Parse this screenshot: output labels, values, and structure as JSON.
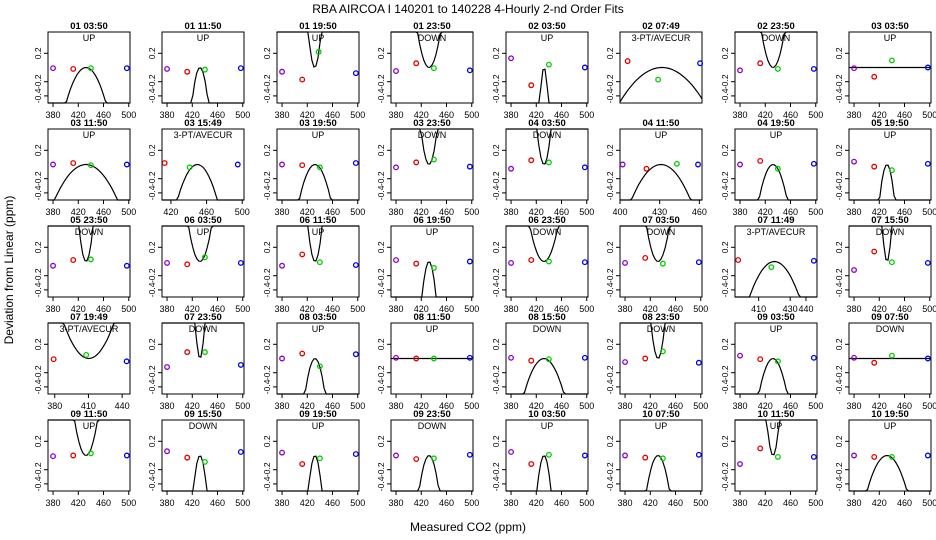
{
  "title": "RBA   AIRCOA I   140201 to 140228   4-Hourly 2-nd Order Fits",
  "xlabel": "Measured CO2 (ppm)",
  "ylabel": "Deviation from Linear (ppm)",
  "colors": {
    "fit": "#000000",
    "p1": "#8b00c8",
    "p2": "#e00000",
    "p3": "#00cc00",
    "p4": "#0000ee"
  },
  "chart_data": {
    "type": "scatter",
    "ylim": [
      -0.5,
      0.5
    ],
    "yticks": [
      "0.2",
      "-0.2",
      "-0.4"
    ],
    "ytick_values": [
      0.2,
      -0.2,
      -0.4
    ],
    "panels": [
      {
        "label": "01 03:50",
        "status": "UP",
        "xlim": [
          372,
          502
        ],
        "xticks": [
          380,
          420,
          460,
          500
        ],
        "x": [
          380,
          412,
          440,
          497
        ],
        "y": [
          -0.01,
          -0.02,
          -0.01,
          -0.01
        ],
        "fit": [
          -0.0005,
          0.0,
          0.0
        ]
      },
      {
        "label": "01 11:50",
        "status": "UP",
        "xlim": [
          372,
          502
        ],
        "xticks": [
          380,
          420,
          460,
          500
        ],
        "x": [
          380,
          412,
          440,
          497
        ],
        "y": [
          -0.02,
          -0.06,
          -0.03,
          -0.01
        ],
        "fit": [
          -0.003,
          0.0,
          0.0
        ]
      },
      {
        "label": "01 19:50",
        "status": "UP",
        "xlim": [
          372,
          502
        ],
        "xticks": [
          380,
          420,
          460,
          500
        ],
        "x": [
          380,
          412,
          438,
          497
        ],
        "y": [
          -0.06,
          -0.17,
          0.22,
          -0.08
        ],
        "fit": [
          0.005,
          0.0,
          0.0
        ]
      },
      {
        "label": "01 23:50",
        "status": "DOWN",
        "xlim": [
          372,
          502
        ],
        "xticks": [
          380,
          420,
          460,
          500
        ],
        "x": [
          380,
          412,
          440,
          497
        ],
        "y": [
          -0.05,
          0.06,
          -0.01,
          -0.04
        ],
        "fit": [
          0.0015,
          0.0,
          0.0
        ]
      },
      {
        "label": "02 03:50",
        "status": "UP",
        "xlim": [
          372,
          502
        ],
        "xticks": [
          380,
          420,
          460,
          500
        ],
        "x": [
          380,
          412,
          440,
          497
        ],
        "y": [
          0.13,
          -0.25,
          0.04,
          0.0
        ],
        "fit": [
          -0.011,
          0.0,
          0.0
        ]
      },
      {
        "label": "02 07:49",
        "status": "3-PT/AVECUR",
        "xlim": [
          405,
          448
        ],
        "xticks": [],
        "x": [
          409,
          425,
          447
        ],
        "y": [
          0.09,
          -0.17,
          0.06
        ],
        "fit": [
          -0.001,
          0.0,
          0.0
        ]
      },
      {
        "label": "02 23:50",
        "status": "DOWN",
        "xlim": [
          372,
          502
        ],
        "xticks": [
          380,
          420,
          460,
          500
        ],
        "x": [
          380,
          412,
          440,
          497
        ],
        "y": [
          -0.04,
          0.06,
          -0.02,
          -0.02
        ],
        "fit": [
          0.0015,
          0.0,
          0.0
        ]
      },
      {
        "label": "03 03:50",
        "status": "UP",
        "xlim": [
          372,
          502
        ],
        "xticks": [
          380,
          420,
          460,
          500
        ],
        "x": [
          380,
          412,
          440,
          497
        ],
        "y": [
          -0.01,
          -0.13,
          0.1,
          0.0
        ],
        "fit": [
          0.0,
          0.0,
          0.0
        ]
      },
      {
        "label": "03 11:50",
        "status": "UP",
        "xlim": [
          372,
          502
        ],
        "xticks": [
          380,
          420,
          460,
          500
        ],
        "x": [
          380,
          412,
          440,
          497
        ],
        "y": [
          0.0,
          0.02,
          -0.01,
          0.0
        ],
        "fit": [
          -0.0002,
          0.0,
          0.0
        ]
      },
      {
        "label": "03 15:49",
        "status": "3-PT/AVECUR",
        "xlim": [
          410,
          502
        ],
        "xticks": [
          420,
          460,
          500
        ],
        "x": [
          413,
          441,
          495
        ],
        "y": [
          0.02,
          -0.04,
          0.0
        ],
        "fit": [
          -0.001,
          0.0,
          0.0
        ]
      },
      {
        "label": "03 19:50",
        "status": "UP",
        "xlim": [
          372,
          502
        ],
        "xticks": [
          380,
          420,
          460,
          500
        ],
        "x": [
          380,
          412,
          440,
          497
        ],
        "y": [
          0.0,
          -0.01,
          -0.04,
          0.02
        ],
        "fit": [
          -0.0008,
          0.0,
          0.0
        ]
      },
      {
        "label": "03 23:50",
        "status": "DOWN",
        "xlim": [
          372,
          502
        ],
        "xticks": [
          380,
          420,
          460,
          500
        ],
        "x": [
          380,
          412,
          440,
          497
        ],
        "y": [
          -0.04,
          0.03,
          0.07,
          -0.03
        ],
        "fit": [
          0.003,
          0.0,
          0.0
        ]
      },
      {
        "label": "04 03:50",
        "status": "DOWN",
        "xlim": [
          372,
          502
        ],
        "xticks": [
          380,
          420,
          460,
          500
        ],
        "x": [
          380,
          412,
          440,
          497
        ],
        "y": [
          -0.06,
          0.06,
          0.03,
          -0.04
        ],
        "fit": [
          0.004,
          0.0,
          0.0
        ]
      },
      {
        "label": "04 11:50",
        "status": "UP",
        "xlim": [
          400,
          462
        ],
        "xticks": [
          400,
          430,
          460
        ],
        "x": [
          402,
          420,
          443,
          459
        ],
        "y": [
          0.0,
          -0.06,
          0.01,
          0.0
        ],
        "fit": [
          -0.001,
          0.0,
          0.0
        ]
      },
      {
        "label": "04 19:50",
        "status": "UP",
        "xlim": [
          372,
          502
        ],
        "xticks": [
          380,
          420,
          460,
          500
        ],
        "x": [
          380,
          412,
          440,
          497
        ],
        "y": [
          0.0,
          0.05,
          -0.06,
          0.01
        ],
        "fit": [
          -0.001,
          0.0,
          0.0
        ]
      },
      {
        "label": "05 19:50",
        "status": "UP",
        "xlim": [
          372,
          502
        ],
        "xticks": [
          380,
          420,
          460,
          500
        ],
        "x": [
          380,
          412,
          440,
          497
        ],
        "y": [
          0.04,
          -0.03,
          -0.08,
          0.01
        ],
        "fit": [
          -0.0035,
          0.0,
          0.0
        ]
      },
      {
        "label": "05 23:50",
        "status": "DOWN",
        "xlim": [
          372,
          502
        ],
        "xticks": [
          380,
          420,
          460,
          500
        ],
        "x": [
          380,
          412,
          440,
          497
        ],
        "y": [
          -0.06,
          0.02,
          0.03,
          -0.06
        ],
        "fit": [
          0.004,
          0.0,
          0.0
        ]
      },
      {
        "label": "06 03:50",
        "status": "UP",
        "xlim": [
          372,
          502
        ],
        "xticks": [
          380,
          420,
          460,
          500
        ],
        "x": [
          380,
          412,
          440,
          497
        ],
        "y": [
          -0.02,
          -0.04,
          0.06,
          -0.02
        ],
        "fit": [
          0.0015,
          0.0,
          0.0
        ]
      },
      {
        "label": "06 11:50",
        "status": "UP",
        "xlim": [
          372,
          502
        ],
        "xticks": [
          380,
          420,
          460,
          500
        ],
        "x": [
          380,
          412,
          440,
          497
        ],
        "y": [
          -0.06,
          0.1,
          -0.01,
          -0.05
        ],
        "fit": [
          0.004,
          0.0,
          0.0
        ]
      },
      {
        "label": "06 19:50",
        "status": "UP",
        "xlim": [
          372,
          502
        ],
        "xticks": [
          380,
          420,
          460,
          500
        ],
        "x": [
          380,
          412,
          440,
          497
        ],
        "y": [
          0.02,
          -0.03,
          -0.09,
          0.0
        ],
        "fit": [
          -0.004,
          0.0,
          0.0
        ]
      },
      {
        "label": "06 23:50",
        "status": "DOWN",
        "xlim": [
          372,
          502
        ],
        "xticks": [
          380,
          420,
          460,
          500
        ],
        "x": [
          380,
          412,
          440,
          497
        ],
        "y": [
          -0.02,
          0.02,
          0.0,
          -0.01
        ],
        "fit": [
          0.001,
          0.0,
          0.0
        ]
      },
      {
        "label": "07 03:50",
        "status": "DOWN",
        "xlim": [
          372,
          502
        ],
        "xticks": [
          380,
          420,
          460,
          500
        ],
        "x": [
          380,
          412,
          440,
          497
        ],
        "y": [
          -0.02,
          0.05,
          -0.03,
          -0.01
        ],
        "fit": [
          0.0015,
          0.0,
          0.0
        ]
      },
      {
        "label": "07 11:49",
        "status": "3-PT/AVECUR",
        "xlim": [
          395,
          447
        ],
        "xticks": [
          410,
          430,
          440
        ],
        "x": [
          397,
          418,
          445
        ],
        "y": [
          0.02,
          -0.08,
          0.01
        ],
        "fit": [
          -0.002,
          0.0,
          0.0
        ]
      },
      {
        "label": "07 15:50",
        "status": "DOWN",
        "xlim": [
          372,
          502
        ],
        "xticks": [
          380,
          420,
          460,
          500
        ],
        "x": [
          380,
          412,
          440,
          497
        ],
        "y": [
          -0.12,
          0.14,
          -0.01,
          -0.02
        ],
        "fit": [
          0.009,
          0.0,
          0.0
        ]
      },
      {
        "label": "07 19:49",
        "status": "3-PT/AVECUR",
        "xlim": [
          374,
          447
        ],
        "xticks": [
          380,
          410,
          440
        ],
        "x": [
          379,
          408,
          444
        ],
        "y": [
          -0.01,
          0.05,
          -0.04
        ],
        "fit": [
          0.001,
          0.0,
          0.0
        ]
      },
      {
        "label": "07 23:50",
        "status": "DOWN",
        "xlim": [
          372,
          502
        ],
        "xticks": [
          380,
          420,
          460,
          500
        ],
        "x": [
          380,
          412,
          440,
          497
        ],
        "y": [
          -0.12,
          0.09,
          0.09,
          -0.09
        ],
        "fit": [
          0.009,
          0.0,
          0.0
        ]
      },
      {
        "label": "08 03:50",
        "status": "UP",
        "xlim": [
          372,
          502
        ],
        "xticks": [
          380,
          420,
          460,
          500
        ],
        "x": [
          380,
          412,
          440,
          497
        ],
        "y": [
          0.0,
          0.07,
          -0.11,
          0.06
        ],
        "fit": [
          -0.002,
          0.0,
          0.0
        ]
      },
      {
        "label": "08 11:50",
        "status": "UP",
        "xlim": [
          372,
          502
        ],
        "xticks": [
          380,
          420,
          460,
          500
        ],
        "x": [
          380,
          412,
          440,
          497
        ],
        "y": [
          0.01,
          0.0,
          0.0,
          0.01
        ],
        "fit": [
          0.0,
          0.0,
          0.0
        ]
      },
      {
        "label": "08 15:50",
        "status": "DOWN",
        "xlim": [
          372,
          502
        ],
        "xticks": [
          380,
          420,
          460,
          500
        ],
        "x": [
          380,
          412,
          440,
          497
        ],
        "y": [
          0.01,
          -0.03,
          -0.01,
          0.01
        ],
        "fit": [
          -0.0005,
          0.0,
          0.0
        ]
      },
      {
        "label": "08 23:50",
        "status": "DOWN",
        "xlim": [
          372,
          502
        ],
        "xticks": [
          380,
          420,
          460,
          500
        ],
        "x": [
          380,
          412,
          440,
          497
        ],
        "y": [
          -0.05,
          0.0,
          0.1,
          -0.06
        ],
        "fit": [
          0.004,
          0.0,
          0.0
        ]
      },
      {
        "label": "09 03:50",
        "status": "UP",
        "xlim": [
          372,
          502
        ],
        "xticks": [
          380,
          420,
          460,
          500
        ],
        "x": [
          380,
          412,
          440,
          497
        ],
        "y": [
          0.04,
          -0.01,
          -0.04,
          0.01
        ],
        "fit": [
          -0.001,
          0.0,
          0.0
        ]
      },
      {
        "label": "09 07:50",
        "status": "DOWN",
        "xlim": [
          372,
          502
        ],
        "xticks": [
          380,
          420,
          460,
          500
        ],
        "x": [
          380,
          412,
          440,
          497
        ],
        "y": [
          0.01,
          -0.06,
          0.04,
          0.0
        ],
        "fit": [
          0.0,
          0.0,
          0.0
        ]
      },
      {
        "label": "09 11:50",
        "status": "UP",
        "xlim": [
          372,
          502
        ],
        "xticks": [
          380,
          420,
          460,
          500
        ],
        "x": [
          380,
          412,
          440,
          497
        ],
        "y": [
          -0.01,
          0.0,
          0.03,
          0.0
        ],
        "fit": [
          0.0015,
          0.0,
          0.0
        ]
      },
      {
        "label": "09 15:50",
        "status": "DOWN",
        "xlim": [
          372,
          502
        ],
        "xticks": [
          380,
          420,
          460,
          500
        ],
        "x": [
          380,
          412,
          440,
          497
        ],
        "y": [
          0.06,
          -0.03,
          -0.09,
          0.05
        ],
        "fit": [
          -0.0045,
          0.0,
          0.0
        ]
      },
      {
        "label": "09 19:50",
        "status": "UP",
        "xlim": [
          372,
          502
        ],
        "xticks": [
          380,
          420,
          460,
          500
        ],
        "x": [
          380,
          412,
          440,
          497
        ],
        "y": [
          0.04,
          -0.12,
          -0.04,
          0.02
        ],
        "fit": [
          -0.0045,
          0.0,
          0.0
        ]
      },
      {
        "label": "09 23:50",
        "status": "DOWN",
        "xlim": [
          372,
          502
        ],
        "xticks": [
          380,
          420,
          460,
          500
        ],
        "x": [
          380,
          412,
          440,
          497
        ],
        "y": [
          0.0,
          -0.05,
          -0.04,
          0.01
        ],
        "fit": [
          -0.002,
          0.0,
          0.0
        ]
      },
      {
        "label": "10 03:50",
        "status": "UP",
        "xlim": [
          372,
          502
        ],
        "xticks": [
          380,
          420,
          460,
          500
        ],
        "x": [
          380,
          412,
          440,
          497
        ],
        "y": [
          0.05,
          -0.12,
          0.01,
          0.0
        ],
        "fit": [
          -0.004,
          0.0,
          0.0
        ]
      },
      {
        "label": "10 07:50",
        "status": "UP",
        "xlim": [
          372,
          502
        ],
        "xticks": [
          380,
          420,
          460,
          500
        ],
        "x": [
          380,
          412,
          440,
          497
        ],
        "y": [
          0.0,
          -0.03,
          -0.04,
          0.01
        ],
        "fit": [
          -0.0015,
          0.0,
          0.0
        ]
      },
      {
        "label": "10 11:50",
        "status": "UP",
        "xlim": [
          372,
          502
        ],
        "xticks": [
          380,
          420,
          460,
          500
        ],
        "x": [
          380,
          412,
          440,
          497
        ],
        "y": [
          -0.12,
          0.1,
          -0.02,
          -0.02
        ],
        "fit": [
          0.005,
          0.0,
          0.0
        ]
      },
      {
        "label": "10 19:50",
        "status": "UP",
        "xlim": [
          372,
          502
        ],
        "xticks": [
          380,
          420,
          460,
          500
        ],
        "x": [
          380,
          412,
          440,
          497
        ],
        "y": [
          0.0,
          -0.02,
          -0.02,
          0.0
        ],
        "fit": [
          -0.0005,
          0.0,
          0.0
        ]
      }
    ]
  }
}
